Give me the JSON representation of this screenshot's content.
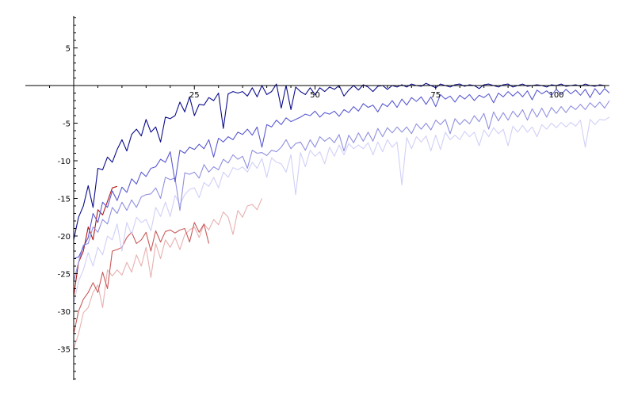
{
  "chart_data": {
    "type": "line",
    "title": "",
    "xlabel": "",
    "ylabel": "",
    "xlim": [
      -10,
      111
    ],
    "ylim": [
      -39,
      9
    ],
    "grid": false,
    "legend": "none",
    "axes_cross_at": [
      0,
      0
    ],
    "x_ticks": [
      {
        "value": 25,
        "label": "25"
      },
      {
        "value": 50,
        "label": "50"
      },
      {
        "value": 75,
        "label": "75"
      },
      {
        "value": 100,
        "label": "100"
      }
    ],
    "y_ticks": [
      {
        "value": 5,
        "label": "5"
      },
      {
        "value": -5,
        "label": "-5"
      },
      {
        "value": -10,
        "label": "-10"
      },
      {
        "value": -15,
        "label": "-15"
      },
      {
        "value": -20,
        "label": "-20"
      },
      {
        "value": -25,
        "label": "-25"
      },
      {
        "value": -30,
        "label": "-30"
      },
      {
        "value": -35,
        "label": "-35"
      }
    ],
    "series": [
      {
        "color": "#e8b0b0",
        "x": [
          0,
          1,
          2,
          3,
          4,
          5,
          6,
          7,
          8,
          9,
          10,
          11,
          12,
          13,
          14,
          15,
          16,
          17,
          18,
          19,
          20,
          21,
          22,
          23,
          24,
          25,
          26,
          27,
          28,
          29,
          30,
          31,
          32,
          33,
          34,
          35,
          36,
          37,
          38,
          39
        ],
        "y": [
          -35,
          -33,
          -30.2,
          -29.5,
          -27.5,
          -26.5,
          -29.5,
          -24.5,
          -25.3,
          -24.5,
          -25.2,
          -23.5,
          -24.8,
          -22.5,
          -24,
          -21.5,
          -25.5,
          -21,
          -23,
          -20.5,
          -21.5,
          -20.2,
          -21.8,
          -19.8,
          -19.2,
          -18.8,
          -20.2,
          -18.4,
          -19.2,
          -17.8,
          -18.5,
          -16.8,
          -17.5,
          -19.8,
          -16.6,
          -17.5,
          -16,
          -15.8,
          -16.5,
          -15
        ]
      },
      {
        "color": "#c85a5a",
        "x": [
          0,
          1,
          2,
          3,
          4,
          5,
          6,
          7,
          8,
          9,
          10,
          11,
          12,
          13,
          14,
          15,
          16,
          17,
          18,
          19,
          20,
          21,
          22,
          23,
          24,
          25,
          26,
          27,
          28
        ],
        "y": [
          -33,
          -30,
          -28.4,
          -27.5,
          -26.2,
          -27.5,
          -24.8,
          -27,
          -22,
          -21.8,
          -21.5,
          -20.2,
          -19.5,
          -21,
          -20.5,
          -19.5,
          -22,
          -19.3,
          -20.8,
          -19.4,
          -19.2,
          -19.6,
          -19.2,
          -19,
          -20.8,
          -18.2,
          -19.5,
          -18.4,
          -21
        ]
      },
      {
        "color": "#b01818",
        "x": [
          0,
          1,
          2,
          3,
          4,
          5,
          6,
          7,
          8,
          9
        ],
        "y": [
          -28,
          -23.5,
          -22,
          -18.8,
          -20.5,
          -16.5,
          -17.2,
          -15.4,
          -13.6,
          -13.4
        ]
      },
      {
        "color": "#d0d0f8",
        "x": [
          0,
          1,
          2,
          3,
          4,
          5,
          6,
          7,
          8,
          9,
          10,
          11,
          12,
          13,
          14,
          15,
          16,
          17,
          18,
          19,
          20,
          21,
          22,
          23,
          24,
          25,
          26,
          27,
          28,
          29,
          30,
          31,
          32,
          33,
          34,
          35,
          36,
          37,
          38,
          39,
          40,
          41,
          42,
          43,
          44,
          45,
          46,
          47,
          48,
          49,
          50,
          51,
          52,
          53,
          54,
          55,
          56,
          57,
          58,
          59,
          60,
          61,
          62,
          63,
          64,
          65,
          66,
          67,
          68,
          69,
          70,
          71,
          72,
          73,
          74,
          75,
          76,
          77,
          78,
          79,
          80,
          81,
          82,
          83,
          84,
          85,
          86,
          87,
          88,
          89,
          90,
          91,
          92,
          93,
          94,
          95,
          96,
          97,
          98,
          99,
          100,
          101,
          102,
          103,
          104,
          105,
          106,
          107,
          108,
          109,
          110,
          111
        ],
        "y": [
          -29,
          -26,
          -24.5,
          -22.2,
          -24,
          -21.5,
          -22.5,
          -20,
          -20.5,
          -18.4,
          -22,
          -18.2,
          -19.8,
          -17.5,
          -18.2,
          -17.8,
          -19.3,
          -16.2,
          -17.4,
          -15.5,
          -17.4,
          -14.6,
          -15.8,
          -14.5,
          -13.8,
          -13.6,
          -14.9,
          -12.9,
          -13.4,
          -12.2,
          -13.6,
          -11.5,
          -12.2,
          -10.9,
          -11.2,
          -10.8,
          -11.5,
          -10.2,
          -11,
          -9.7,
          -12.2,
          -9.6,
          -10.2,
          -10.4,
          -11.5,
          -9.2,
          -14.5,
          -8.9,
          -10.8,
          -8.6,
          -9.4,
          -8.8,
          -10.4,
          -8.2,
          -9.4,
          -7.9,
          -9.2,
          -7.7,
          -8.4,
          -7.9,
          -8.4,
          -7.6,
          -9.2,
          -7.5,
          -8.8,
          -7.2,
          -8.2,
          -7.5,
          -13.2,
          -6.9,
          -8.4,
          -6.8,
          -7.5,
          -6.7,
          -8.7,
          -6.6,
          -8.5,
          -6.2,
          -7.2,
          -6.6,
          -7.2,
          -6.1,
          -6.8,
          -6.2,
          -8,
          -5.9,
          -6.8,
          -5.6,
          -6.4,
          -5.8,
          -8,
          -5.4,
          -6.2,
          -5.3,
          -6.2,
          -5.5,
          -6.8,
          -5.2,
          -5.8,
          -5,
          -5.6,
          -4.9,
          -5.5,
          -4.9,
          -5.4,
          -4.6,
          -8.2,
          -4.5,
          -5.2,
          -4.5,
          -4.6,
          -4.2
        ]
      },
      {
        "color": "#9090e0",
        "x": [
          0,
          1,
          2,
          3,
          4,
          5,
          6,
          7,
          8,
          9,
          10,
          11,
          12,
          13,
          14,
          15,
          16,
          17,
          18,
          19,
          20,
          21,
          22,
          23,
          24,
          25,
          26,
          27,
          28,
          29,
          30,
          31,
          32,
          33,
          34,
          35,
          36,
          37,
          38,
          39,
          40,
          41,
          42,
          43,
          44,
          45,
          46,
          47,
          48,
          49,
          50,
          51,
          52,
          53,
          54,
          55,
          56,
          57,
          58,
          59,
          60,
          61,
          62,
          63,
          64,
          65,
          66,
          67,
          68,
          69,
          70,
          71,
          72,
          73,
          74,
          75,
          76,
          77,
          78,
          79,
          80,
          81,
          82,
          83,
          84,
          85,
          86,
          87,
          88,
          89,
          90,
          91,
          92,
          93,
          94,
          95,
          96,
          97,
          98,
          99,
          100,
          101,
          102,
          103,
          104,
          105,
          106,
          107,
          108,
          109,
          110,
          111
        ],
        "y": [
          -26,
          -23.5,
          -21.2,
          -21,
          -18.8,
          -19.5,
          -17.8,
          -18.4,
          -16.2,
          -17,
          -15.5,
          -16.6,
          -15.2,
          -16.2,
          -14.8,
          -14.5,
          -14.4,
          -13.6,
          -15,
          -12.2,
          -12.5,
          -12.3,
          -16.6,
          -11.6,
          -11.8,
          -11.5,
          -12.3,
          -10.5,
          -11.5,
          -10.8,
          -11.2,
          -9.8,
          -10.3,
          -9.2,
          -9.8,
          -9.4,
          -11,
          -8.6,
          -9,
          -8.9,
          -9.3,
          -8.6,
          -8.8,
          -8.2,
          -7.2,
          -8.4,
          -7.7,
          -7.5,
          -8.6,
          -7.2,
          -8.2,
          -6.8,
          -7.4,
          -6.9,
          -7.6,
          -6.5,
          -8.7,
          -6.6,
          -7.6,
          -6.3,
          -7.4,
          -6.2,
          -7.4,
          -5.7,
          -6.8,
          -5.6,
          -6.3,
          -5.5,
          -6.2,
          -5.5,
          -6.4,
          -5.1,
          -5.8,
          -5,
          -5.9,
          -4.6,
          -5.2,
          -4.5,
          -6.4,
          -4.4,
          -5.2,
          -4.5,
          -5.1,
          -4,
          -4.8,
          -3.7,
          -5.8,
          -3.5,
          -4.7,
          -3.6,
          -4.6,
          -3.4,
          -4.2,
          -3.2,
          -4.6,
          -3.1,
          -4.2,
          -3,
          -4.2,
          -2.9,
          -3.7,
          -2.8,
          -3.6,
          -2.7,
          -3.2,
          -2.5,
          -3.2,
          -2.3,
          -2.9,
          -2.2,
          -3,
          -2
        ]
      },
      {
        "color": "#5a5ad2",
        "x": [
          0,
          1,
          2,
          3,
          4,
          5,
          6,
          7,
          8,
          9,
          10,
          11,
          12,
          13,
          14,
          15,
          16,
          17,
          18,
          19,
          20,
          21,
          22,
          23,
          24,
          25,
          26,
          27,
          28,
          29,
          30,
          31,
          32,
          33,
          34,
          35,
          36,
          37,
          38,
          39,
          40,
          41,
          42,
          43,
          44,
          45,
          46,
          47,
          48,
          49,
          50,
          51,
          52,
          53,
          54,
          55,
          56,
          57,
          58,
          59,
          60,
          61,
          62,
          63,
          64,
          65,
          66,
          67,
          68,
          69,
          70,
          71,
          72,
          73,
          74,
          75,
          76,
          77,
          78,
          79,
          80,
          81,
          82,
          83,
          84,
          85,
          86,
          87,
          88,
          89,
          90,
          91,
          92,
          93,
          94,
          95,
          96,
          97,
          98,
          99,
          100,
          101,
          102,
          103,
          104,
          105,
          106,
          107,
          108,
          109,
          110,
          111
        ],
        "y": [
          -23,
          -22.8,
          -21.5,
          -20.2,
          -17,
          -18.2,
          -15.5,
          -16.2,
          -14,
          -15.3,
          -13.5,
          -14.2,
          -12.4,
          -13.1,
          -11.5,
          -12.1,
          -11,
          -10.8,
          -9.8,
          -10.2,
          -8.8,
          -12.8,
          -8.6,
          -9,
          -8.2,
          -8.5,
          -7.8,
          -8.4,
          -7.2,
          -9.5,
          -7,
          -7.5,
          -6.8,
          -7.2,
          -6.2,
          -6.5,
          -5.8,
          -6.6,
          -5.5,
          -8.2,
          -5.2,
          -5.5,
          -4.6,
          -5.2,
          -4.3,
          -4.8,
          -4.5,
          -4.2,
          -3.8,
          -4,
          -3.4,
          -4.2,
          -3.6,
          -3.8,
          -3.4,
          -4.1,
          -3.2,
          -3.6,
          -2.8,
          -3.4,
          -2.4,
          -2.9,
          -2.6,
          -3.5,
          -2.4,
          -2.8,
          -2,
          -2.9,
          -1.8,
          -2.6,
          -1.6,
          -2.1,
          -1.5,
          -2.5,
          -1.5,
          -2.8,
          -1.2,
          -1.8,
          -1.4,
          -2.2,
          -1.3,
          -1.8,
          -1.2,
          -2,
          -1.3,
          -1.6,
          -1.1,
          -2.3,
          -1,
          -1.5,
          -0.8,
          -1.4,
          -0.8,
          -1.5,
          -0.7,
          -1.9,
          -0.6,
          -1.1,
          -0.7,
          -1.3,
          -0.5,
          -1.2,
          -0.5,
          -1.1,
          -0.6,
          -1.3,
          -0.5,
          -1.6,
          -0.4,
          -1.2,
          -0.4,
          -1
        ]
      },
      {
        "color": "#0c0c8c",
        "x": [
          0,
          1,
          2,
          3,
          4,
          5,
          6,
          7,
          8,
          9,
          10,
          11,
          12,
          13,
          14,
          15,
          16,
          17,
          18,
          19,
          20,
          21,
          22,
          23,
          24,
          25,
          26,
          27,
          28,
          29,
          30,
          31,
          32,
          33,
          34,
          35,
          36,
          37,
          38,
          39,
          40,
          41,
          42,
          43,
          44,
          45,
          46,
          47,
          48,
          49,
          50,
          51,
          52,
          53,
          54,
          55,
          56,
          57,
          58,
          59,
          60,
          61,
          62,
          63,
          64,
          65,
          66,
          67,
          68,
          69,
          70,
          71,
          72,
          73,
          74,
          75,
          76,
          77,
          78,
          79,
          80,
          81,
          82,
          83,
          84,
          85,
          86,
          87,
          88,
          89,
          90,
          91,
          92,
          93,
          94,
          95,
          96,
          97,
          98,
          99,
          100,
          101,
          102,
          103,
          104,
          105,
          106,
          107,
          108,
          109,
          110,
          111
        ],
        "y": [
          -20.5,
          -17.5,
          -16,
          -13.3,
          -16.2,
          -11,
          -11.2,
          -9.5,
          -10.2,
          -8.5,
          -7.2,
          -8.7,
          -6.5,
          -5.8,
          -6.7,
          -4.5,
          -6.2,
          -5.5,
          -7.5,
          -4.2,
          -4.4,
          -4,
          -2.2,
          -3.5,
          -1.5,
          -4,
          -2.5,
          -2.6,
          -1.6,
          -2,
          -1,
          -5.7,
          -1.1,
          -0.8,
          -1,
          -0.8,
          -1.4,
          -0.3,
          -1.5,
          0,
          -1.2,
          -0.8,
          0.2,
          -3,
          0,
          -3.2,
          -0.2,
          -0.8,
          -1.2,
          -0.3,
          -1.2,
          -0.3,
          -0.8,
          -0.2,
          -0.5,
          0,
          -1.4,
          -0.6,
          0,
          -0.6,
          0.1,
          -0.2,
          -0.8,
          -0.1,
          0,
          -0.5,
          0,
          -0.2,
          0.1,
          -0.2,
          0.2,
          0,
          -0.1,
          0.3,
          0,
          -0.3,
          0.2,
          0,
          -0.2,
          0.1,
          0.2,
          -0.1,
          0.1,
          0,
          -0.4,
          0.1,
          0.2,
          0,
          -0.2,
          0.1,
          0.2,
          -0.2,
          0,
          0.2,
          -0.1,
          0,
          0.1,
          0,
          -0.2,
          0.1,
          0,
          0.2,
          -0.1,
          0,
          0.1,
          -0.1,
          0.2,
          0,
          -0.1,
          0.1,
          0,
          0
        ]
      }
    ]
  }
}
